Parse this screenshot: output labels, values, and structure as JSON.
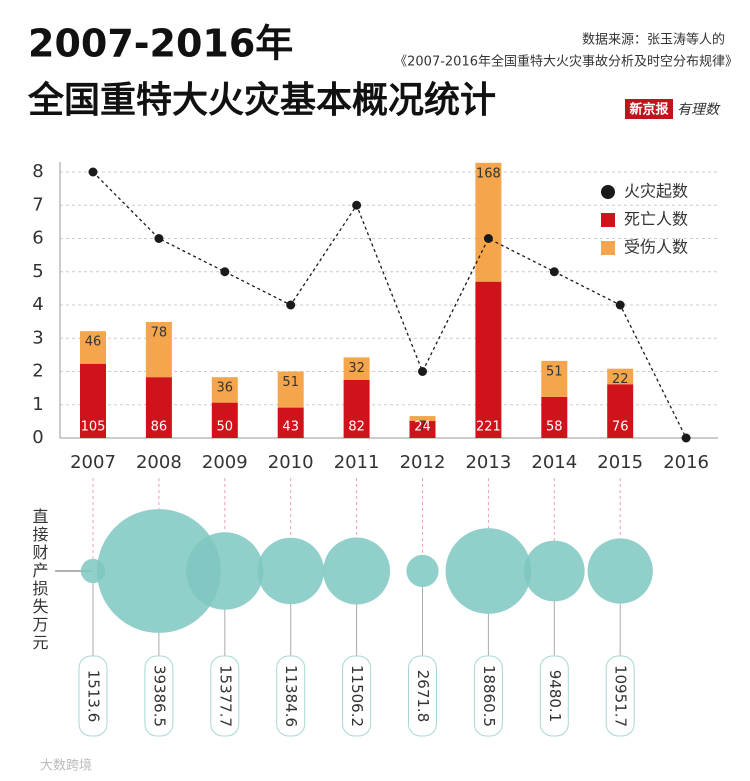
{
  "header": {
    "title_line1": "2007-2016年",
    "title_line2": "全国重特大火灾基本概况统计",
    "source_line1": "数据来源：张玉涛等人的",
    "source_line2": "《2007-2016年全国重特大火灾事故分析及时空分布规律》",
    "logo_left": "新京报",
    "logo_right": "有理数",
    "watermark": "大数跨境"
  },
  "chart_data": {
    "type": "bar",
    "categories": [
      "2007",
      "2008",
      "2009",
      "2010",
      "2011",
      "2012",
      "2013",
      "2014",
      "2015",
      "2016"
    ],
    "ylim": [
      0,
      8
    ],
    "yticks": [
      0,
      1,
      2,
      3,
      4,
      5,
      6,
      7,
      8
    ],
    "y2lim": [
      0,
      376
    ],
    "grid": true,
    "legend": "top-right",
    "series": [
      {
        "name": "火灾起数",
        "type": "line",
        "color": "#1a1a1a",
        "values": [
          8,
          6,
          5,
          4,
          7,
          2,
          6,
          5,
          4,
          0
        ]
      },
      {
        "name": "死亡人数",
        "color": "#d0121b",
        "axis": "y2",
        "values": [
          105,
          86,
          50,
          43,
          82,
          24,
          221,
          58,
          76,
          null
        ]
      },
      {
        "name": "受伤人数",
        "color": "#f5a64c",
        "axis": "y2",
        "values": [
          46,
          78,
          36,
          51,
          32,
          7,
          168,
          51,
          22,
          null
        ]
      }
    ],
    "bubbles": {
      "label": "直接财产损失万元",
      "color": "#7ec7c1",
      "values": [
        1513.6,
        39386.5,
        15377.7,
        11384.6,
        11506.2,
        2671.8,
        18860.5,
        9480.1,
        10951.7,
        null
      ]
    }
  }
}
